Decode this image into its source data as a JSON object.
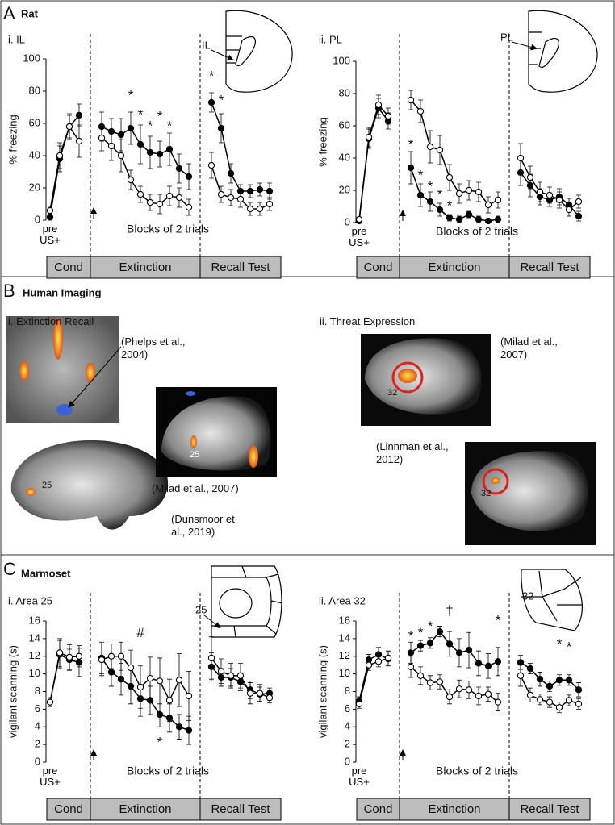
{
  "sections": [
    {
      "letter": "A",
      "title": "Rat"
    },
    {
      "letter": "B",
      "title": "Human Imaging"
    },
    {
      "letter": "C",
      "title": "Marmoset"
    }
  ],
  "chart_data": [
    {
      "type": "line",
      "title": "i. IL",
      "diagram_label": "IL",
      "ylabel": "% freezing",
      "xlabel": "Blocks of 2 trials",
      "categories": [
        "pre US+",
        null,
        null,
        null,
        null,
        null,
        null,
        null,
        null,
        null,
        null,
        null,
        null,
        null,
        null,
        null,
        null,
        null,
        null,
        null,
        null
      ],
      "phases": [
        "Cond",
        "Extinction",
        "Recall Test"
      ],
      "ylim": [
        0,
        100
      ],
      "yticks": [
        0,
        20,
        40,
        60,
        80,
        100
      ],
      "series": [
        {
          "color": "#000000",
          "marker": "filled",
          "values": [
            2,
            38,
            58,
            65,
            58,
            55,
            53,
            57,
            47,
            42,
            41,
            44,
            32,
            27,
            73,
            57,
            29,
            18,
            18,
            19,
            18
          ],
          "errors": [
            2,
            8,
            7,
            7,
            9,
            8,
            10,
            10,
            12,
            10,
            8,
            10,
            9,
            8,
            6,
            9,
            6,
            4,
            4,
            4,
            5
          ]
        },
        {
          "color": "#000000",
          "marker": "open",
          "values": [
            6,
            40,
            58,
            49,
            51,
            46,
            40,
            25,
            16,
            11,
            10,
            15,
            14,
            8,
            34,
            16,
            14,
            13,
            7,
            7,
            10
          ],
          "errors": [
            2,
            8,
            8,
            10,
            8,
            9,
            10,
            6,
            5,
            5,
            6,
            6,
            6,
            5,
            8,
            5,
            5,
            5,
            4,
            4,
            4
          ]
        }
      ],
      "annotations": [
        {
          "text": "*",
          "x": 7,
          "y": 77
        },
        {
          "text": "*",
          "x": 8,
          "y": 65
        },
        {
          "text": "*",
          "x": 9,
          "y": 58
        },
        {
          "text": "*",
          "x": 10,
          "y": 64
        },
        {
          "text": "*",
          "x": 11,
          "y": 58
        },
        {
          "text": "*",
          "x": 14,
          "y": 89
        },
        {
          "text": "*",
          "x": 15,
          "y": 74
        }
      ]
    },
    {
      "type": "line",
      "title": "ii. PL",
      "diagram_label": "PL",
      "ylabel": "% freezing",
      "xlabel": "Blocks of 2 trials",
      "categories": [
        "pre US+",
        null,
        null,
        null,
        null,
        null,
        null,
        null,
        null,
        null,
        null,
        null,
        null,
        null,
        null,
        null,
        null,
        null,
        null,
        null,
        null
      ],
      "phases": [
        "Cond",
        "Extinction",
        "Recall Test"
      ],
      "ylim": [
        0,
        100
      ],
      "yticks": [
        0,
        20,
        40,
        60,
        80,
        100
      ],
      "series": [
        {
          "color": "#000000",
          "marker": "filled",
          "values": [
            1,
            52,
            71,
            63,
            34,
            17,
            13,
            8,
            3,
            2,
            5,
            2,
            1,
            2,
            31,
            23,
            16,
            14,
            16,
            11,
            4
          ],
          "errors": [
            1,
            6,
            6,
            5,
            10,
            7,
            6,
            4,
            2,
            2,
            2,
            2,
            1,
            2,
            8,
            7,
            5,
            4,
            5,
            4,
            3
          ]
        },
        {
          "color": "#000000",
          "marker": "open",
          "values": [
            2,
            53,
            73,
            66,
            76,
            69,
            47,
            45,
            28,
            18,
            20,
            19,
            11,
            14,
            40,
            28,
            19,
            17,
            14,
            8,
            13
          ],
          "errors": [
            1,
            6,
            6,
            5,
            6,
            7,
            10,
            9,
            8,
            6,
            6,
            6,
            5,
            5,
            9,
            7,
            6,
            5,
            5,
            4,
            4
          ]
        }
      ],
      "annotations": [
        {
          "text": "*",
          "x": 4,
          "y": 48
        },
        {
          "text": "*",
          "x": 5,
          "y": 29
        },
        {
          "text": "*",
          "x": 6,
          "y": 22
        },
        {
          "text": "*",
          "x": 7,
          "y": 17
        },
        {
          "text": "*",
          "x": 8,
          "y": 10
        }
      ]
    },
    {
      "type": "line",
      "title": "i. Area 25",
      "diagram_label": "25",
      "ylabel": "vigilant scanning (s)",
      "xlabel": "Blocks of 2 trials",
      "categories": [
        "pre US+",
        null,
        null,
        null,
        null,
        null,
        null,
        null,
        null,
        null,
        null,
        null,
        null,
        null,
        null,
        null,
        null,
        null,
        null,
        null,
        null
      ],
      "phases": [
        "Cond",
        "Extinction",
        "Recall Test"
      ],
      "ylim": [
        0,
        16
      ],
      "yticks": [
        0,
        2,
        4,
        6,
        8,
        10,
        12,
        14,
        16
      ],
      "series": [
        {
          "color": "#000000",
          "marker": "filled",
          "values": [
            6.8,
            12.2,
            11.6,
            11.3,
            11.8,
            10.2,
            9.4,
            8.6,
            7.2,
            7.0,
            5.4,
            5.0,
            4.0,
            3.6,
            10.8,
            9.6,
            9.6,
            9.1,
            8.2,
            7.7,
            7.8
          ],
          "errors": [
            0.5,
            1.6,
            1.2,
            1.6,
            1.8,
            1.6,
            1.8,
            2.0,
            2.0,
            1.6,
            1.4,
            1.6,
            1.4,
            1.6,
            1.6,
            1.0,
            1.0,
            1.0,
            1.0,
            0.8,
            0.6
          ]
        },
        {
          "color": "#000000",
          "marker": "open",
          "values": [
            6.8,
            12.4,
            11.9,
            12.0,
            11.6,
            12.0,
            12.0,
            10.7,
            8.5,
            9.5,
            9.2,
            7.0,
            9.3,
            7.5,
            11.8,
            10.3,
            9.8,
            9.8,
            7.8,
            7.8,
            7.3
          ],
          "errors": [
            0.5,
            1.6,
            1.4,
            1.2,
            1.8,
            1.4,
            1.6,
            2.0,
            2.4,
            2.4,
            2.6,
            2.4,
            3.0,
            2.8,
            2.4,
            1.4,
            1.4,
            1.4,
            1.2,
            1.0,
            0.6
          ]
        }
      ],
      "annotations": [
        {
          "text": "#",
          "x": 8,
          "y": 14.6
        },
        {
          "text": "*",
          "x": 10,
          "y": 2.2
        }
      ]
    },
    {
      "type": "line",
      "title": "ii. Area 32",
      "diagram_label": "32",
      "ylabel": "vigilant scanning (s)",
      "xlabel": "Blocks of 2 trials",
      "categories": [
        "pre US+",
        null,
        null,
        null,
        null,
        null,
        null,
        null,
        null,
        null,
        null,
        null,
        null,
        null,
        null,
        null,
        null,
        null,
        null,
        null,
        null
      ],
      "phases": [
        "Cond",
        "Extinction",
        "Recall Test"
      ],
      "ylim": [
        0,
        16
      ],
      "yticks": [
        0,
        2,
        4,
        6,
        8,
        10,
        12,
        14,
        16
      ],
      "series": [
        {
          "color": "#000000",
          "marker": "filled",
          "values": [
            6.9,
            11.6,
            12.2,
            11.7,
            12.4,
            13.2,
            13.5,
            14.8,
            13.4,
            12.4,
            12.7,
            11.2,
            10.9,
            11.4,
            11.3,
            10.6,
            9.4,
            8.6,
            9.3,
            9.3,
            8.2
          ],
          "errors": [
            0.5,
            0.6,
            0.8,
            0.8,
            1.2,
            0.6,
            0.6,
            0.6,
            1.4,
            1.6,
            2.0,
            1.4,
            1.4,
            1.6,
            0.8,
            0.6,
            0.8,
            0.6,
            0.6,
            0.6,
            0.8
          ]
        },
        {
          "color": "#000000",
          "marker": "open",
          "values": [
            6.6,
            11.0,
            11.4,
            11.8,
            10.8,
            9.8,
            9.0,
            9.1,
            7.4,
            8.3,
            8.2,
            7.5,
            7.7,
            6.8,
            9.8,
            7.6,
            7.1,
            6.8,
            6.2,
            7.0,
            6.6
          ],
          "errors": [
            0.5,
            0.6,
            0.6,
            0.8,
            1.2,
            1.0,
            0.8,
            0.8,
            0.8,
            1.0,
            1.0,
            1.0,
            0.8,
            1.0,
            1.2,
            0.8,
            0.6,
            0.6,
            0.6,
            0.6,
            0.6
          ]
        }
      ],
      "annotations": [
        {
          "text": "*",
          "x": 4,
          "y": 14.2
        },
        {
          "text": "*",
          "x": 5,
          "y": 14.6
        },
        {
          "text": "*",
          "x": 6,
          "y": 15.3
        },
        {
          "text": "†",
          "x": 8,
          "y": 17.1
        },
        {
          "text": "*",
          "x": 13,
          "y": 16.0
        },
        {
          "text": "*",
          "x": 18,
          "y": 13.3
        },
        {
          "text": "*",
          "x": 19,
          "y": 13.0
        }
      ]
    }
  ],
  "imaging": {
    "titles": [
      "i. Extinction Recall",
      "ii. Threat Expression"
    ],
    "citations": [
      "(Phelps et al., 2004)",
      "(Milad et al., 2007)",
      "(Dunsmoor et al., 2019)",
      "(Milad et al., 2007)",
      "(Linnman et al., 2012)"
    ],
    "image_labels": [
      "25",
      "25",
      "32",
      "32"
    ]
  }
}
